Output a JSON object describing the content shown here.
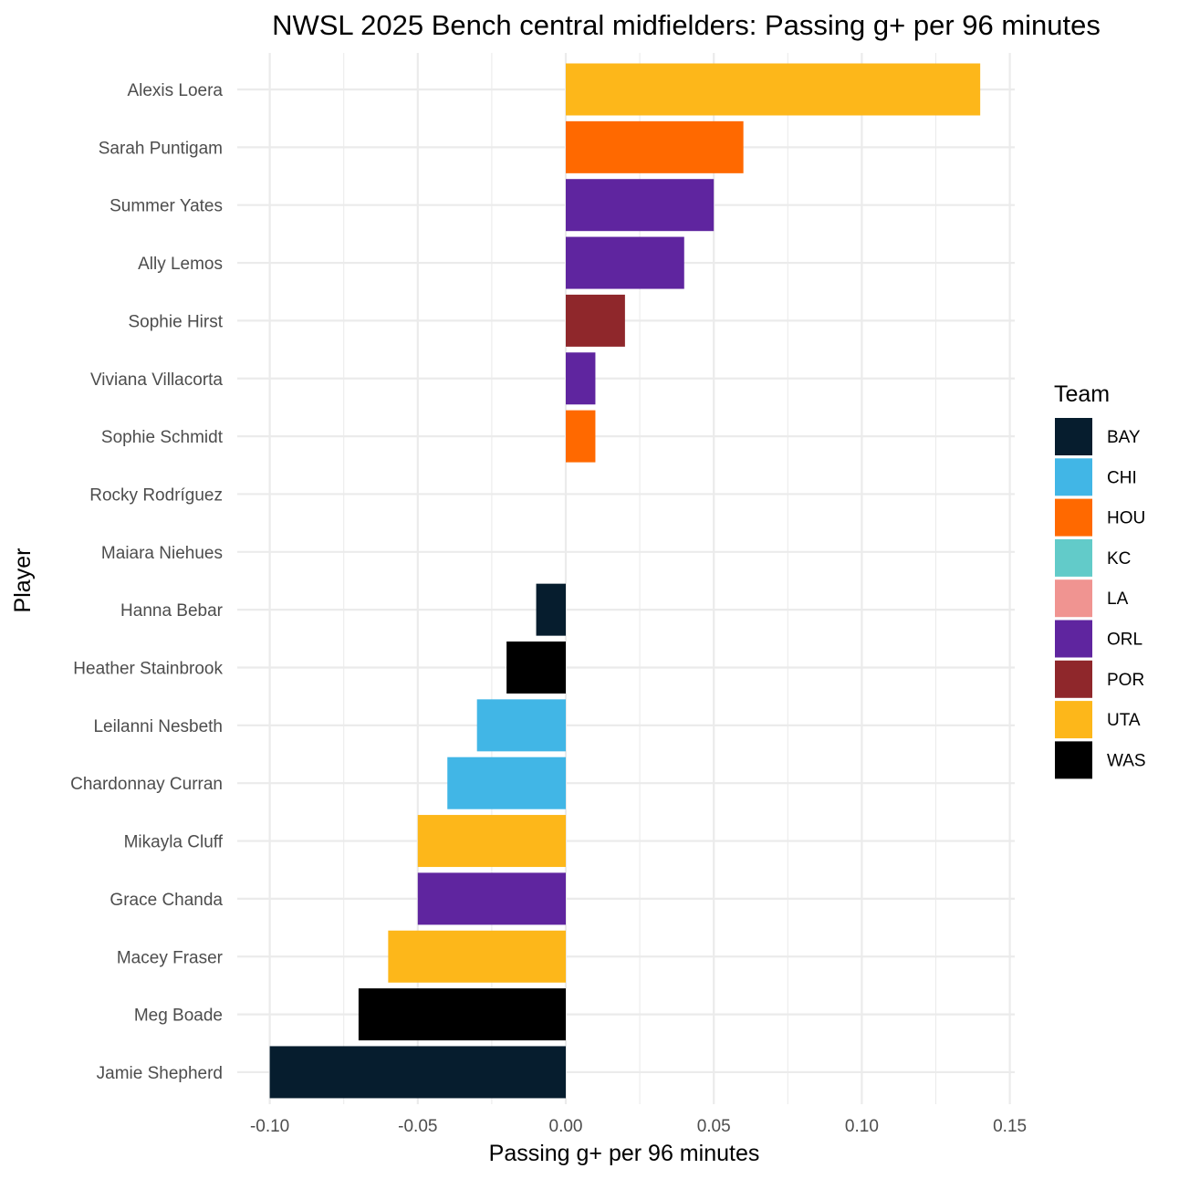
{
  "chart_data": {
    "type": "bar",
    "orientation": "horizontal",
    "title": "NWSL 2025 Bench central midfielders: Passing g+ per 96 minutes",
    "xlabel": "Passing g+ per 96 minutes",
    "ylabel": "Player",
    "xlim": [
      -0.1,
      0.15
    ],
    "xticks": [
      -0.1,
      -0.05,
      0.0,
      0.05,
      0.1,
      0.15
    ],
    "xtick_labels": [
      "-0.10",
      "-0.05",
      "0.00",
      "0.05",
      "0.10",
      "0.15"
    ],
    "grid": true,
    "legend": {
      "title": "Team",
      "position": "right"
    },
    "teams": [
      {
        "name": "BAY",
        "color": "#061d2e"
      },
      {
        "name": "CHI",
        "color": "#41b6e6"
      },
      {
        "name": "HOU",
        "color": "#ff6900"
      },
      {
        "name": "KC",
        "color": "#62cbc9"
      },
      {
        "name": "LA",
        "color": "#f09491"
      },
      {
        "name": "ORL",
        "color": "#5f259f"
      },
      {
        "name": "POR",
        "color": "#8f272b"
      },
      {
        "name": "UTA",
        "color": "#fdb71a"
      },
      {
        "name": "WAS",
        "color": "#000000"
      }
    ],
    "bars": [
      {
        "player": "Alexis Loera",
        "team": "UTA",
        "value": 0.14
      },
      {
        "player": "Sarah Puntigam",
        "team": "HOU",
        "value": 0.06
      },
      {
        "player": "Summer Yates",
        "team": "ORL",
        "value": 0.05
      },
      {
        "player": "Ally Lemos",
        "team": "ORL",
        "value": 0.04
      },
      {
        "player": "Sophie Hirst",
        "team": "POR",
        "value": 0.02
      },
      {
        "player": "Viviana Villacorta",
        "team": "ORL",
        "value": 0.01
      },
      {
        "player": "Sophie Schmidt",
        "team": "HOU",
        "value": 0.01
      },
      {
        "player": "Rocky Rodríguez",
        "team": "KC",
        "value": 0.0
      },
      {
        "player": "Maiara Niehues",
        "team": "LA",
        "value": 0.0
      },
      {
        "player": "Hanna Bebar",
        "team": "BAY",
        "value": -0.01
      },
      {
        "player": "Heather Stainbrook",
        "team": "WAS",
        "value": -0.02
      },
      {
        "player": "Leilanni Nesbeth",
        "team": "CHI",
        "value": -0.03
      },
      {
        "player": "Chardonnay Curran",
        "team": "CHI",
        "value": -0.04
      },
      {
        "player": "Mikayla Cluff",
        "team": "UTA",
        "value": -0.05
      },
      {
        "player": "Grace Chanda",
        "team": "ORL",
        "value": -0.05
      },
      {
        "player": "Macey Fraser",
        "team": "UTA",
        "value": -0.06
      },
      {
        "player": "Meg Boade",
        "team": "WAS",
        "value": -0.07
      },
      {
        "player": "Jamie Shepherd",
        "team": "BAY",
        "value": -0.1
      }
    ]
  }
}
